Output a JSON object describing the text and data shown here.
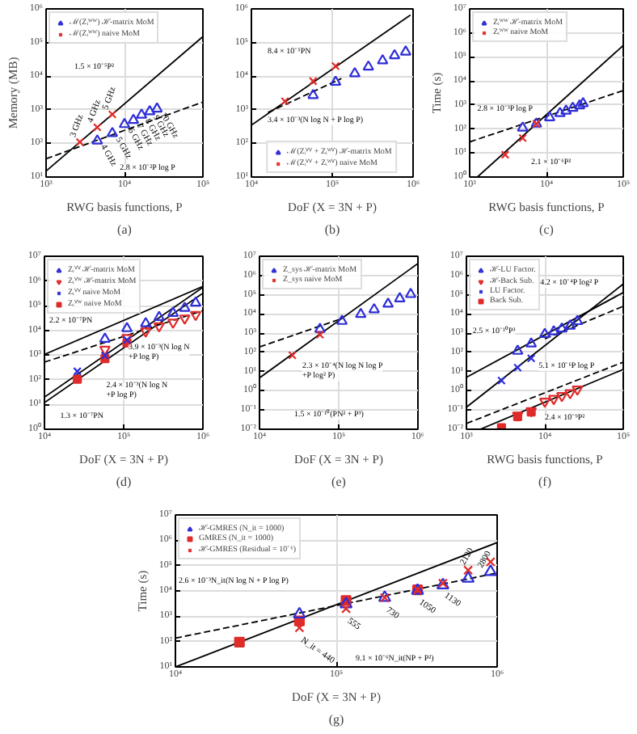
{
  "chart_data": [
    {
      "type": "scatter",
      "log": "xy",
      "grid": true,
      "legend": "top left",
      "xlabel": "RWG basis functions, P",
      "ylabel": "Memory (MB)",
      "xlim": [
        1000,
        100000
      ],
      "ylim": [
        10,
        1000000
      ],
      "xticks": [
        {
          "value": 1000,
          "label": "10³"
        },
        {
          "value": 10000,
          "label": "10⁴"
        },
        {
          "value": 100000,
          "label": "10⁵"
        }
      ],
      "yticks": [
        {
          "value": 10,
          "label": "10¹"
        },
        {
          "value": 100,
          "label": "10²"
        },
        {
          "value": 1000,
          "label": "10³"
        },
        {
          "value": 10000,
          "label": "10⁴"
        },
        {
          "value": 100000,
          "label": "10⁵"
        },
        {
          "value": 1000000,
          "label": "10⁶"
        }
      ],
      "series": [
        {
          "name": "ℳ(Zᵢᵂᵂ) ℋ-matrix MoM",
          "color": "#2d2dd8",
          "marker": "triangle",
          "x": [
            4500,
            7000,
            10000,
            13000,
            16500,
            21000,
            26000
          ],
          "values": [
            120,
            200,
            370,
            490,
            700,
            890,
            1070
          ]
        },
        {
          "name": "ℳ(Zᵢᵂᵂ) naive MoM",
          "color": "#e02b2b",
          "marker": "cross",
          "x": [
            2700,
            4500,
            7000
          ],
          "values": [
            110,
            300,
            730
          ]
        },
        {
          "type": "line",
          "color": "#000000",
          "line_style": "solid",
          "marker": "none",
          "x": [
            1000,
            100000
          ],
          "values": [
            15,
            150000
          ]
        },
        {
          "type": "line",
          "color": "#000000",
          "line_style": "dashed",
          "marker": "none",
          "x": [
            1000,
            100000
          ],
          "values": [
            35,
            1700
          ]
        }
      ],
      "annotations": [
        "1.5 × 10⁻⁵P²",
        "2.8 × 10⁻²P log P",
        {
          "text": "3 GHz",
          "x": 2700,
          "y": 110
        },
        {
          "text": "4 GHz",
          "x": 4500,
          "y": 300
        },
        {
          "text": "5 GHz",
          "x": 7000,
          "y": 730
        },
        {
          "text": "4 GHz",
          "x": 4500,
          "y": 120
        },
        {
          "text": "5 GHz",
          "x": 7000,
          "y": 200
        },
        {
          "text": "6 GHz",
          "x": 10000,
          "y": 370
        },
        {
          "text": "7 GHz",
          "x": 13000,
          "y": 490
        },
        {
          "text": "8 GHz",
          "x": 16500,
          "y": 700
        },
        {
          "text": "9 GHz",
          "x": 21000,
          "y": 890
        },
        {
          "text": "10 GHz",
          "x": 26000,
          "y": 1070
        }
      ],
      "subtitle": "(a)"
    },
    {
      "type": "scatter",
      "log": "xy",
      "grid": true,
      "legend": "bottom",
      "xlabel": "DoF (X = 3N + P)",
      "xlim": [
        10000,
        1000000
      ],
      "ylim": [
        10,
        1000000
      ],
      "xticks": [
        {
          "value": 10000,
          "label": "10⁴"
        },
        {
          "value": 100000,
          "label": "10⁵"
        },
        {
          "value": 1000000,
          "label": "10⁶"
        }
      ],
      "yticks": [
        {
          "value": 10,
          "label": "10¹"
        },
        {
          "value": 100,
          "label": "10²"
        },
        {
          "value": 1000,
          "label": "10³"
        },
        {
          "value": 10000,
          "label": "10⁴"
        },
        {
          "value": 100000,
          "label": "10⁵"
        },
        {
          "value": 1000000,
          "label": "10⁶"
        }
      ],
      "series": [
        {
          "name": "ℳ(Zᵢⱽⱽ + Zᵢᵂⱽ) ℋ-matrix MoM",
          "color": "#2d2dd8",
          "marker": "triangle",
          "x": [
            58000,
            110000,
            190000,
            280000,
            420000,
            590000,
            810000
          ],
          "values": [
            2700,
            6700,
            12000,
            19000,
            29000,
            41000,
            53000
          ]
        },
        {
          "name": "ℳ(Zᵢⱽⱽ + Zᵢᵂⱽ) naive MoM",
          "color": "#e02b2b",
          "marker": "cross",
          "x": [
            26000,
            58000,
            110000
          ],
          "values": [
            1800,
            7100,
            20000
          ]
        },
        {
          "type": "line",
          "color": "#000000",
          "line_style": "solid",
          "marker": "none",
          "x": [
            10000,
            930000
          ],
          "values": [
            350,
            660000
          ]
        },
        {
          "type": "line",
          "color": "#000000",
          "line_style": "dashed",
          "marker": "none",
          "x": [
            16000,
            130000
          ],
          "values": [
            830,
            8500
          ]
        }
      ],
      "annotations": [
        "8.4 × 10⁻⁵PN",
        "3.4 × 10⁻³(N log N + P log P)"
      ],
      "subtitle": "(b)"
    },
    {
      "type": "scatter",
      "log": "xy",
      "grid": true,
      "legend": "top left",
      "xlabel": "RWG basis functions, P",
      "ylabel": "Time (s)",
      "xlim": [
        1000,
        100000
      ],
      "ylim": [
        1,
        10000000
      ],
      "xticks": [
        {
          "value": 1000,
          "label": "10³"
        },
        {
          "value": 10000,
          "label": "10⁴"
        },
        {
          "value": 100000,
          "label": "10⁵"
        }
      ],
      "yticks": [
        {
          "value": 1,
          "label": "10⁰"
        },
        {
          "value": 10,
          "label": "10¹"
        },
        {
          "value": 100,
          "label": "10²"
        },
        {
          "value": 1000,
          "label": "10³"
        },
        {
          "value": 10000,
          "label": "10⁴"
        },
        {
          "value": 100000,
          "label": "10⁵"
        },
        {
          "value": 1000000,
          "label": "10⁶"
        },
        {
          "value": 10000000,
          "label": "10⁷"
        }
      ],
      "series": [
        {
          "name": "Zᵢᵂᵂ ℋ-matrix MoM",
          "color": "#2d2dd8",
          "marker": "triangle",
          "x": [
            4900,
            7400,
            11000,
            15000,
            18000,
            22000,
            27000,
            30000
          ],
          "values": [
            112,
            165,
            300,
            450,
            570,
            740,
            940,
            1150
          ]
        },
        {
          "name": "Zᵢᵂᵂ naive MoM",
          "color": "#e02b2b",
          "marker": "cross",
          "x": [
            2900,
            4900,
            7400
          ],
          "values": [
            8.5,
            42,
            165
          ]
        },
        {
          "type": "line",
          "color": "#000000",
          "line_style": "solid",
          "marker": "none",
          "x": [
            1260,
            100000
          ],
          "values": [
            1,
            300000
          ]
        },
        {
          "type": "line",
          "color": "#000000",
          "line_style": "dashed",
          "marker": "none",
          "x": [
            1000,
            100000
          ],
          "values": [
            29,
            4000
          ]
        }
      ],
      "annotations": [
        "2.8 × 10⁻³P log P",
        "2.1 × 10⁻⁶P²"
      ],
      "subtitle": "(c)"
    },
    {
      "type": "scatter",
      "log": "xy",
      "grid": true,
      "legend": "top left",
      "xlabel": "DoF (X = 3N + P)",
      "xlim": [
        10000,
        1000000
      ],
      "ylim": [
        1,
        10000000
      ],
      "xticks": [
        {
          "value": 10000,
          "label": "10⁴"
        },
        {
          "value": 100000,
          "label": "10⁵"
        },
        {
          "value": 1000000,
          "label": "10⁶"
        }
      ],
      "yticks": [
        {
          "value": 1,
          "label": "10⁰"
        },
        {
          "value": 10,
          "label": "10¹"
        },
        {
          "value": 100,
          "label": "10²"
        },
        {
          "value": 1000,
          "label": "10³"
        },
        {
          "value": 10000,
          "label": "10⁴"
        },
        {
          "value": 100000,
          "label": "10⁵"
        },
        {
          "value": 1000000,
          "label": "10⁶"
        },
        {
          "value": 10000000,
          "label": "10⁷"
        }
      ],
      "series": [
        {
          "name": "Zᵢⱽⱽ ℋ-matrix MoM",
          "color": "#2d2dd8",
          "marker": "triangle",
          "x": [
            58000,
            110000,
            190000,
            280000,
            420000,
            590000,
            810000
          ],
          "values": [
            4500,
            12000,
            19000,
            34000,
            50000,
            80000,
            130000
          ]
        },
        {
          "name": "Zᵢⱽᵂ ℋ-matrix MoM",
          "color": "#e02b2b",
          "x": [
            58000,
            110000,
            190000,
            280000,
            420000,
            590000,
            810000
          ],
          "values": [
            1700,
            5000,
            9300,
            15000,
            21000,
            31000,
            43000
          ]
        },
        {
          "name": "Zᵢⱽⱽ naive MoM",
          "color": "#2d2dd8",
          "marker": "cross",
          "x": [
            26000,
            58000,
            110000
          ],
          "values": [
            220,
            970,
            4100
          ]
        },
        {
          "name": "Zᵢⱽᵂ naive MoM",
          "color": "#e02b2b",
          "marker": "square",
          "x": [
            26000,
            58000,
            110000
          ],
          "values": [
            106,
            720,
            3100
          ]
        },
        {
          "type": "line",
          "color": "#000000",
          "line_style": "solid",
          "marker": "none",
          "x": [
            10000,
            1000000
          ],
          "values": [
            1070,
            600000
          ]
        },
        {
          "type": "line",
          "color": "#000000",
          "line_style": "dashed",
          "marker": "none",
          "x": [
            10000,
            1000000
          ],
          "values": [
            520,
            63000
          ]
        },
        {
          "type": "line",
          "color": "#000000",
          "line_style": "solid",
          "marker": "none",
          "x": [
            10000,
            1000000
          ],
          "values": [
            20,
            550000
          ]
        },
        {
          "type": "line",
          "color": "#000000",
          "line_style": "solid",
          "marker": "none",
          "x": [
            10000,
            1000000
          ],
          "values": [
            12,
            320000
          ]
        }
      ],
      "annotations": [
        "2.2 × 10⁻⁷PN",
        "3.9 × 10⁻³(N log N\n+P log P)",
        "2.4 × 10⁻³(N log N\n+P log P)",
        "1.3 × 10⁻⁷PN"
      ],
      "subtitle": "(d)"
    },
    {
      "type": "scatter",
      "log": "xy",
      "grid": true,
      "legend": "top left",
      "xlabel": "DoF (X = 3N + P)",
      "xlim": [
        10000,
        1000000
      ],
      "ylim": [
        0.01,
        10000000
      ],
      "xticks": [
        {
          "value": 10000,
          "label": "10⁴"
        },
        {
          "value": 100000,
          "label": "10⁵"
        },
        {
          "value": 1000000,
          "label": "10⁶"
        }
      ],
      "yticks": [
        {
          "value": 0.01,
          "label": "10⁻²"
        },
        {
          "value": 0.1,
          "label": "10⁻¹"
        },
        {
          "value": 1,
          "label": "10⁰"
        },
        {
          "value": 10,
          "label": "10¹"
        },
        {
          "value": 100,
          "label": "10²"
        },
        {
          "value": 1000,
          "label": "10³"
        },
        {
          "value": 10000,
          "label": "10⁴"
        },
        {
          "value": 100000,
          "label": "10⁵"
        },
        {
          "value": 1000000,
          "label": "10⁶"
        },
        {
          "value": 10000000,
          "label": "10⁷"
        }
      ],
      "series": [
        {
          "name": "Z_sys ℋ-matrix MoM",
          "color": "#2d2dd8",
          "marker": "triangle",
          "x": [
            58000,
            110000,
            190000,
            280000,
            420000,
            590000,
            810000
          ],
          "values": [
            1600,
            4200,
            9600,
            17000,
            33000,
            63000,
            105000
          ]
        },
        {
          "name": "Z_sys naive MoM",
          "color": "#e02b2b",
          "marker": "cross",
          "x": [
            26000,
            58000
          ],
          "values": [
            70,
            840
          ]
        },
        {
          "type": "line",
          "color": "#000000",
          "line_style": "solid",
          "marker": "none",
          "x": [
            10000,
            1000000
          ],
          "values": [
            4.7,
            4200000
          ]
        },
        {
          "type": "line",
          "color": "#000000",
          "line_style": "dashed",
          "marker": "none",
          "x": [
            10000,
            110000
          ],
          "values": [
            190,
            5800
          ]
        }
      ],
      "annotations": [
        "2.3 × 10⁻⁴(N log N log P\n+P log² P)",
        "1.5 × 10⁻¹⁰(PN² + P³)"
      ],
      "subtitle": "(e)"
    },
    {
      "type": "scatter",
      "log": "xy",
      "grid": true,
      "legend": "top left",
      "xlabel": "RWG basis functions, P",
      "xlim": [
        1000,
        100000
      ],
      "ylim": [
        0.01,
        10000000
      ],
      "xticks": [
        {
          "value": 1000,
          "label": "10³"
        },
        {
          "value": 10000,
          "label": "10⁴"
        },
        {
          "value": 100000,
          "label": "10⁵"
        }
      ],
      "yticks": [
        {
          "value": 0.01,
          "label": "10⁻²"
        },
        {
          "value": 0.1,
          "label": "10⁻¹"
        },
        {
          "value": 1,
          "label": "10⁰"
        },
        {
          "value": 10,
          "label": "10¹"
        },
        {
          "value": 100,
          "label": "10²"
        },
        {
          "value": 1000,
          "label": "10³"
        },
        {
          "value": 10000,
          "label": "10⁴"
        },
        {
          "value": 100000,
          "label": "10⁵"
        },
        {
          "value": 1000000,
          "label": "10⁶"
        },
        {
          "value": 10000000,
          "label": "10⁷"
        }
      ],
      "series": [
        {
          "name": "ℋ-LU Factor.",
          "color": "#2d2dd8",
          "marker": "triangle",
          "x": [
            4500,
            6700,
            10000,
            13000,
            16500,
            21000,
            26000
          ],
          "values": [
            117,
            280,
            880,
            1200,
            1700,
            2400,
            4100
          ]
        },
        {
          "name": "ℋ-Back Sub.",
          "color": "#e02b2b",
          "x": [
            4500,
            6700,
            10000,
            13000,
            16500,
            21000,
            26000
          ],
          "values": [
            0.053,
            0.091,
            0.28,
            0.39,
            0.55,
            0.77,
            1.2
          ]
        },
        {
          "name": "LU Factor.",
          "color": "#2d2dd8",
          "marker": "cross",
          "x": [
            2800,
            4500,
            6700
          ],
          "values": [
            3.4,
            16,
            49
          ]
        },
        {
          "name": "Back Sub.",
          "color": "#e02b2b",
          "marker": "square",
          "x": [
            2800,
            4500,
            6700
          ],
          "values": [
            0.012,
            0.045,
            0.08
          ]
        },
        {
          "type": "line",
          "color": "#000000",
          "line_style": "solid",
          "marker": "none",
          "x": [
            1000,
            100000
          ],
          "values": [
            5,
            130000
          ]
        },
        {
          "type": "line",
          "color": "#000000",
          "line_style": "solid",
          "marker": "none",
          "x": [
            1000,
            100000
          ],
          "values": [
            0.14,
            360000
          ]
        },
        {
          "type": "line",
          "color": "#000000",
          "line_style": "dashed",
          "marker": "none",
          "x": [
            10000,
            100000
          ],
          "values": [
            500,
            25000
          ]
        },
        {
          "type": "line",
          "color": "#000000",
          "line_style": "dashed",
          "marker": "none",
          "x": [
            1000,
            100000
          ],
          "values": [
            0.02,
            31
          ]
        },
        {
          "type": "line",
          "color": "#000000",
          "line_style": "solid",
          "marker": "none",
          "x": [
            1500,
            100000
          ],
          "values": [
            0.01,
            13
          ]
        }
      ],
      "annotations": [
        "4.2 × 10⁻⁴P log² P",
        "2.5 × 10⁻¹⁰P³",
        "5.1 × 10⁻⁶P log P",
        "2.4 × 10⁻⁹P²"
      ],
      "subtitle": "(f)"
    },
    {
      "type": "scatter",
      "log": "xy",
      "grid": true,
      "legend": "top left",
      "xlabel": "DoF (X = 3N + P)",
      "ylabel": "Time (s)",
      "xlim": [
        10000,
        1000000
      ],
      "ylim": [
        10,
        10000000
      ],
      "xticks": [
        {
          "value": 10000,
          "label": "10⁴"
        },
        {
          "value": 100000,
          "label": "10⁵"
        },
        {
          "value": 1000000,
          "label": "10⁶"
        }
      ],
      "yticks": [
        {
          "value": 10,
          "label": "10¹"
        },
        {
          "value": 100,
          "label": "10²"
        },
        {
          "value": 1000,
          "label": "10³"
        },
        {
          "value": 10000,
          "label": "10⁴"
        },
        {
          "value": 100000,
          "label": "10⁵"
        },
        {
          "value": 1000000,
          "label": "10⁶"
        },
        {
          "value": 10000000,
          "label": "10⁷"
        }
      ],
      "series": [
        {
          "name": "ℋ-GMRES (N_it = 1000)",
          "color": "#2d2dd8",
          "marker": "triangle",
          "x": [
            59000,
            115000,
            200000,
            320000,
            460000,
            660000,
            910000
          ],
          "values": [
            1200,
            3000,
            5400,
            10300,
            17000,
            31000,
            57000
          ]
        },
        {
          "name": "GMRES (N_it = 1000)",
          "color": "#e02b2b",
          "marker": "square",
          "x": [
            25000,
            59000,
            115000,
            320000
          ],
          "values": [
            95,
            650,
            4200,
            11000
          ]
        },
        {
          "name": "ℋ-GMRES (Residual = 10⁻⁶)",
          "color": "#e02b2b",
          "marker": "cross",
          "x": [
            59000,
            115000,
            200000,
            320000,
            460000,
            660000,
            910000
          ],
          "values": [
            350,
            2000,
            5400,
            11000,
            20000,
            66000,
            140000
          ]
        },
        {
          "type": "line",
          "color": "#000000",
          "line_style": "solid",
          "marker": "none",
          "x": [
            10000,
            1000000
          ],
          "values": [
            10,
            810000
          ]
        },
        {
          "type": "line",
          "color": "#000000",
          "line_style": "dashed",
          "marker": "none",
          "x": [
            10000,
            1000000
          ],
          "values": [
            137,
            51000
          ]
        }
      ],
      "annotations": [
        "2.6 × 10⁻³N_it(N log N + P log P)",
        "9.1 × 10⁻⁶N_it(NP + P²)",
        {
          "text": "N_it = 440",
          "x": 59000,
          "y": 350
        },
        {
          "text": "555",
          "x": 115000,
          "y": 2000
        },
        {
          "text": "730",
          "x": 200000,
          "y": 5400
        },
        {
          "text": "1050",
          "x": 320000,
          "y": 11000
        },
        {
          "text": "1130",
          "x": 460000,
          "y": 20000
        },
        {
          "text": "2120",
          "x": 660000,
          "y": 66000
        },
        {
          "text": "2800",
          "x": 910000,
          "y": 140000
        }
      ],
      "subtitle": "(g)"
    }
  ]
}
